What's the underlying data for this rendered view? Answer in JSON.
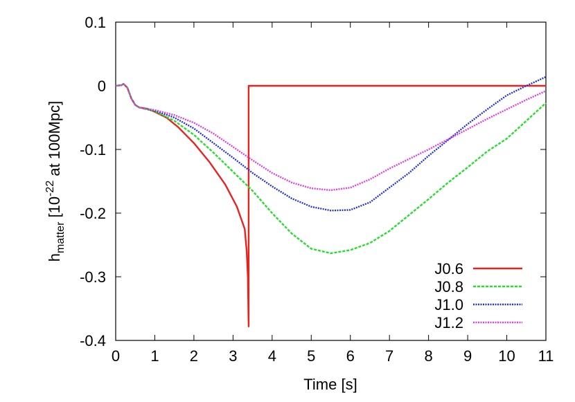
{
  "chart_data": {
    "type": "line",
    "title": "",
    "xlabel": "Time [s]",
    "ylabel": {
      "base": "h",
      "sub": "matter",
      "mid": " [10",
      "sup": "-22",
      "tail": " at 100Mpc]"
    },
    "xlim": [
      0,
      11
    ],
    "ylim": [
      -0.4,
      0.1
    ],
    "xticks": [
      "0",
      "1",
      "2",
      "3",
      "4",
      "5",
      "6",
      "7",
      "8",
      "9",
      "10",
      "11"
    ],
    "yticks": [
      "-0.4",
      "-0.3",
      "-0.2",
      "-0.1",
      "0",
      "0.1"
    ],
    "grid": false,
    "legend_position": "bottom-right",
    "series": [
      {
        "name": "J0.6",
        "color": "#e8231f",
        "dash": "solid",
        "points": [
          [
            0,
            0
          ],
          [
            0.15,
            0.001
          ],
          [
            0.2,
            0.003
          ],
          [
            0.3,
            -0.003
          ],
          [
            0.4,
            -0.02
          ],
          [
            0.5,
            -0.03
          ],
          [
            0.6,
            -0.034
          ],
          [
            0.8,
            -0.036
          ],
          [
            1.0,
            -0.041
          ],
          [
            1.3,
            -0.05
          ],
          [
            1.6,
            -0.065
          ],
          [
            2.0,
            -0.09
          ],
          [
            2.4,
            -0.12
          ],
          [
            2.8,
            -0.155
          ],
          [
            3.1,
            -0.19
          ],
          [
            3.3,
            -0.225
          ],
          [
            3.35,
            -0.26
          ],
          [
            3.38,
            -0.3
          ],
          [
            3.4,
            -0.378
          ],
          [
            3.4,
            0
          ],
          [
            11,
            0
          ]
        ]
      },
      {
        "name": "J0.8",
        "color": "#22e02a",
        "dash": "dashed",
        "points": [
          [
            0,
            0
          ],
          [
            0.15,
            0.001
          ],
          [
            0.2,
            0.003
          ],
          [
            0.3,
            -0.003
          ],
          [
            0.4,
            -0.02
          ],
          [
            0.5,
            -0.03
          ],
          [
            0.6,
            -0.034
          ],
          [
            1.0,
            -0.04
          ],
          [
            1.5,
            -0.055
          ],
          [
            2.0,
            -0.077
          ],
          [
            2.5,
            -0.105
          ],
          [
            3.0,
            -0.135
          ],
          [
            3.5,
            -0.165
          ],
          [
            4.0,
            -0.2
          ],
          [
            4.5,
            -0.232
          ],
          [
            5.0,
            -0.256
          ],
          [
            5.5,
            -0.263
          ],
          [
            6.0,
            -0.258
          ],
          [
            6.5,
            -0.247
          ],
          [
            7.0,
            -0.228
          ],
          [
            7.5,
            -0.203
          ],
          [
            8.0,
            -0.178
          ],
          [
            8.5,
            -0.152
          ],
          [
            9.0,
            -0.128
          ],
          [
            9.5,
            -0.103
          ],
          [
            10.0,
            -0.083
          ],
          [
            10.5,
            -0.055
          ],
          [
            11,
            -0.027
          ]
        ]
      },
      {
        "name": "J1.0",
        "color": "#1f2ee0",
        "dash": "dotted",
        "points": [
          [
            0,
            0
          ],
          [
            0.15,
            0.001
          ],
          [
            0.2,
            0.003
          ],
          [
            0.3,
            -0.003
          ],
          [
            0.4,
            -0.02
          ],
          [
            0.5,
            -0.03
          ],
          [
            0.6,
            -0.034
          ],
          [
            1.0,
            -0.039
          ],
          [
            1.5,
            -0.05
          ],
          [
            2.0,
            -0.067
          ],
          [
            2.5,
            -0.09
          ],
          [
            3.0,
            -0.113
          ],
          [
            3.5,
            -0.137
          ],
          [
            4.0,
            -0.158
          ],
          [
            4.5,
            -0.177
          ],
          [
            5.0,
            -0.19
          ],
          [
            5.5,
            -0.196
          ],
          [
            6.0,
            -0.195
          ],
          [
            6.5,
            -0.183
          ],
          [
            7.0,
            -0.16
          ],
          [
            7.5,
            -0.137
          ],
          [
            8.0,
            -0.11
          ],
          [
            8.5,
            -0.085
          ],
          [
            9.0,
            -0.06
          ],
          [
            9.5,
            -0.037
          ],
          [
            10.0,
            -0.015
          ],
          [
            10.5,
            0.0
          ],
          [
            11,
            0.014
          ]
        ]
      },
      {
        "name": "J1.2",
        "color": "#e33be3",
        "dash": "dotted",
        "points": [
          [
            0,
            0
          ],
          [
            0.15,
            0.001
          ],
          [
            0.2,
            0.003
          ],
          [
            0.3,
            -0.003
          ],
          [
            0.4,
            -0.02
          ],
          [
            0.5,
            -0.03
          ],
          [
            0.6,
            -0.034
          ],
          [
            1.0,
            -0.038
          ],
          [
            1.5,
            -0.046
          ],
          [
            2.0,
            -0.058
          ],
          [
            2.5,
            -0.075
          ],
          [
            3.0,
            -0.096
          ],
          [
            3.5,
            -0.117
          ],
          [
            4.0,
            -0.137
          ],
          [
            4.5,
            -0.152
          ],
          [
            5.0,
            -0.161
          ],
          [
            5.5,
            -0.164
          ],
          [
            6.0,
            -0.16
          ],
          [
            6.5,
            -0.147
          ],
          [
            7.0,
            -0.13
          ],
          [
            7.5,
            -0.115
          ],
          [
            8.0,
            -0.1
          ],
          [
            8.5,
            -0.084
          ],
          [
            9.0,
            -0.068
          ],
          [
            9.5,
            -0.052
          ],
          [
            10.0,
            -0.037
          ],
          [
            10.5,
            -0.022
          ],
          [
            11,
            -0.008
          ]
        ]
      }
    ]
  }
}
